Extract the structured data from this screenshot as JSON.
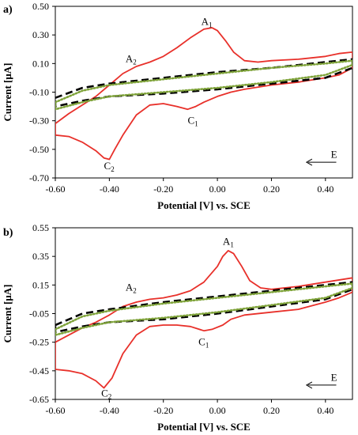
{
  "chart_data": [
    {
      "type": "line",
      "panel_label": "a)",
      "xlabel": "Potential [V] vs. SCE",
      "ylabel": "Current [μA]",
      "xlim": [
        -0.6,
        0.5
      ],
      "ylim": [
        -0.7,
        0.5
      ],
      "x_ticks": [
        -0.6,
        -0.4,
        -0.2,
        0.0,
        0.2,
        0.4
      ],
      "x_tick_labels": [
        "-0.60",
        "-0.40",
        "-0.20",
        "0.00",
        "0.20",
        "0.40"
      ],
      "y_ticks": [
        0.5,
        0.3,
        0.1,
        -0.1,
        -0.3,
        -0.5,
        -0.7
      ],
      "y_tick_labels": [
        "0.50",
        "0.30",
        "0.10",
        "-0.10",
        "-0.30",
        "-0.50",
        "-0.70"
      ],
      "grid": false,
      "legend": "none",
      "annotations": [
        {
          "main": "A",
          "sub": "1",
          "x": -0.06,
          "y": 0.37
        },
        {
          "main": "A",
          "sub": "2",
          "x": -0.34,
          "y": 0.11
        },
        {
          "main": "C",
          "sub": "1",
          "x": -0.11,
          "y": -0.32
        },
        {
          "main": "C",
          "sub": "2",
          "x": -0.42,
          "y": -0.64
        },
        {
          "main": "E",
          "sub": "",
          "x": 0.42,
          "y": -0.56
        }
      ],
      "arrow": {
        "x1": 0.44,
        "x2": 0.33,
        "y": -0.59
      },
      "series": [
        {
          "color": "#e8302a",
          "dash": "solid",
          "anodic": [
            [
              -0.6,
              -0.32
            ],
            [
              -0.55,
              -0.25
            ],
            [
              -0.5,
              -0.19
            ],
            [
              -0.45,
              -0.13
            ],
            [
              -0.4,
              -0.05
            ],
            [
              -0.35,
              0.03
            ],
            [
              -0.3,
              0.08
            ],
            [
              -0.25,
              0.11
            ],
            [
              -0.2,
              0.15
            ],
            [
              -0.15,
              0.21
            ],
            [
              -0.1,
              0.28
            ],
            [
              -0.05,
              0.34
            ],
            [
              -0.02,
              0.35
            ],
            [
              0.0,
              0.33
            ],
            [
              0.03,
              0.26
            ],
            [
              0.06,
              0.18
            ],
            [
              0.1,
              0.12
            ],
            [
              0.15,
              0.11
            ],
            [
              0.2,
              0.12
            ],
            [
              0.3,
              0.13
            ],
            [
              0.4,
              0.15
            ],
            [
              0.45,
              0.17
            ],
            [
              0.5,
              0.18
            ]
          ],
          "cathodic": [
            [
              0.5,
              0.07
            ],
            [
              0.45,
              0.02
            ],
            [
              0.4,
              0.0
            ],
            [
              0.3,
              -0.03
            ],
            [
              0.2,
              -0.05
            ],
            [
              0.1,
              -0.08
            ],
            [
              0.05,
              -0.1
            ],
            [
              0.0,
              -0.13
            ],
            [
              -0.05,
              -0.17
            ],
            [
              -0.08,
              -0.2
            ],
            [
              -0.11,
              -0.22
            ],
            [
              -0.15,
              -0.2
            ],
            [
              -0.2,
              -0.18
            ],
            [
              -0.25,
              -0.19
            ],
            [
              -0.3,
              -0.26
            ],
            [
              -0.35,
              -0.4
            ],
            [
              -0.38,
              -0.5
            ],
            [
              -0.4,
              -0.57
            ],
            [
              -0.42,
              -0.56
            ],
            [
              -0.45,
              -0.51
            ],
            [
              -0.5,
              -0.45
            ],
            [
              -0.55,
              -0.41
            ],
            [
              -0.6,
              -0.4
            ]
          ]
        },
        {
          "color": "#000000",
          "dash": "dash",
          "anodic": [
            [
              -0.6,
              -0.14
            ],
            [
              -0.5,
              -0.07
            ],
            [
              -0.4,
              -0.04
            ],
            [
              -0.2,
              0.0
            ],
            [
              0.0,
              0.04
            ],
            [
              0.2,
              0.07
            ],
            [
              0.4,
              0.11
            ],
            [
              0.5,
              0.13
            ]
          ],
          "cathodic": [
            [
              0.5,
              0.07
            ],
            [
              0.4,
              0.0
            ],
            [
              0.2,
              -0.04
            ],
            [
              0.0,
              -0.08
            ],
            [
              -0.2,
              -0.11
            ],
            [
              -0.4,
              -0.13
            ],
            [
              -0.5,
              -0.16
            ],
            [
              -0.6,
              -0.2
            ]
          ]
        },
        {
          "color": "#7fa33a",
          "dash": "dot",
          "anodic": [
            [
              -0.6,
              -0.17
            ],
            [
              -0.5,
              -0.09
            ],
            [
              -0.4,
              -0.05
            ],
            [
              -0.2,
              -0.01
            ],
            [
              0.0,
              0.03
            ],
            [
              0.2,
              0.07
            ],
            [
              0.4,
              0.1
            ],
            [
              0.5,
              0.12
            ]
          ],
          "cathodic": [
            [
              0.5,
              0.09
            ],
            [
              0.4,
              0.02
            ],
            [
              0.2,
              -0.03
            ],
            [
              0.0,
              -0.07
            ],
            [
              -0.2,
              -0.1
            ],
            [
              -0.4,
              -0.13
            ],
            [
              -0.5,
              -0.17
            ],
            [
              -0.6,
              -0.22
            ]
          ]
        }
      ]
    },
    {
      "type": "line",
      "panel_label": "b)",
      "xlabel": "Potential [V] vs. SCE",
      "ylabel": "Current [μA]",
      "xlim": [
        -0.6,
        0.5
      ],
      "ylim": [
        -0.65,
        0.55
      ],
      "x_ticks": [
        -0.6,
        -0.4,
        -0.2,
        0.0,
        0.2,
        0.4
      ],
      "x_tick_labels": [
        "-0.60",
        "-0.40",
        "-0.20",
        "0.00",
        "0.20",
        "0.40"
      ],
      "y_ticks": [
        0.55,
        0.35,
        0.15,
        -0.05,
        -0.25,
        -0.45,
        -0.65
      ],
      "y_tick_labels": [
        "0.55",
        "0.35",
        "0.15",
        "-0.05",
        "-0.25",
        "-0.45",
        "-0.65"
      ],
      "grid": false,
      "legend": "none",
      "annotations": [
        {
          "main": "A",
          "sub": "1",
          "x": 0.02,
          "y": 0.43
        },
        {
          "main": "A",
          "sub": "2",
          "x": -0.34,
          "y": 0.11
        },
        {
          "main": "C",
          "sub": "1",
          "x": -0.07,
          "y": -0.27
        },
        {
          "main": "C",
          "sub": "2",
          "x": -0.43,
          "y": -0.63
        },
        {
          "main": "E",
          "sub": "",
          "x": 0.42,
          "y": -0.52
        }
      ],
      "arrow": {
        "x1": 0.44,
        "x2": 0.33,
        "y": -0.55
      },
      "series": [
        {
          "color": "#e8302a",
          "dash": "solid",
          "anodic": [
            [
              -0.6,
              -0.25
            ],
            [
              -0.55,
              -0.2
            ],
            [
              -0.5,
              -0.15
            ],
            [
              -0.45,
              -0.11
            ],
            [
              -0.4,
              -0.06
            ],
            [
              -0.35,
              0.0
            ],
            [
              -0.3,
              0.03
            ],
            [
              -0.25,
              0.05
            ],
            [
              -0.2,
              0.06
            ],
            [
              -0.15,
              0.08
            ],
            [
              -0.1,
              0.11
            ],
            [
              -0.05,
              0.17
            ],
            [
              0.0,
              0.28
            ],
            [
              0.02,
              0.35
            ],
            [
              0.04,
              0.39
            ],
            [
              0.06,
              0.37
            ],
            [
              0.09,
              0.28
            ],
            [
              0.12,
              0.18
            ],
            [
              0.16,
              0.13
            ],
            [
              0.2,
              0.12
            ],
            [
              0.3,
              0.14
            ],
            [
              0.4,
              0.17
            ],
            [
              0.5,
              0.2
            ]
          ],
          "cathodic": [
            [
              0.5,
              0.1
            ],
            [
              0.45,
              0.06
            ],
            [
              0.4,
              0.03
            ],
            [
              0.3,
              -0.02
            ],
            [
              0.2,
              -0.04
            ],
            [
              0.1,
              -0.06
            ],
            [
              0.05,
              -0.09
            ],
            [
              0.02,
              -0.13
            ],
            [
              -0.02,
              -0.16
            ],
            [
              -0.05,
              -0.17
            ],
            [
              -0.1,
              -0.14
            ],
            [
              -0.15,
              -0.13
            ],
            [
              -0.2,
              -0.13
            ],
            [
              -0.25,
              -0.14
            ],
            [
              -0.3,
              -0.2
            ],
            [
              -0.35,
              -0.33
            ],
            [
              -0.39,
              -0.5
            ],
            [
              -0.42,
              -0.57
            ],
            [
              -0.45,
              -0.52
            ],
            [
              -0.5,
              -0.47
            ],
            [
              -0.55,
              -0.45
            ],
            [
              -0.6,
              -0.44
            ]
          ]
        },
        {
          "color": "#000000",
          "dash": "dash",
          "anodic": [
            [
              -0.6,
              -0.13
            ],
            [
              -0.5,
              -0.05
            ],
            [
              -0.4,
              -0.02
            ],
            [
              -0.2,
              0.03
            ],
            [
              0.0,
              0.07
            ],
            [
              0.2,
              0.11
            ],
            [
              0.4,
              0.15
            ],
            [
              0.5,
              0.17
            ]
          ],
          "cathodic": [
            [
              0.5,
              0.12
            ],
            [
              0.4,
              0.05
            ],
            [
              0.2,
              0.0
            ],
            [
              0.0,
              -0.05
            ],
            [
              -0.2,
              -0.09
            ],
            [
              -0.4,
              -0.11
            ],
            [
              -0.5,
              -0.14
            ],
            [
              -0.6,
              -0.18
            ]
          ]
        },
        {
          "color": "#7fa33a",
          "dash": "dot",
          "anodic": [
            [
              -0.6,
              -0.16
            ],
            [
              -0.5,
              -0.07
            ],
            [
              -0.4,
              -0.03
            ],
            [
              -0.2,
              0.02
            ],
            [
              0.0,
              0.06
            ],
            [
              0.2,
              0.1
            ],
            [
              0.4,
              0.14
            ],
            [
              0.5,
              0.16
            ]
          ],
          "cathodic": [
            [
              0.5,
              0.13
            ],
            [
              0.4,
              0.06
            ],
            [
              0.2,
              0.01
            ],
            [
              0.0,
              -0.04
            ],
            [
              -0.2,
              -0.08
            ],
            [
              -0.4,
              -0.11
            ],
            [
              -0.5,
              -0.15
            ],
            [
              -0.6,
              -0.2
            ]
          ]
        }
      ]
    }
  ]
}
